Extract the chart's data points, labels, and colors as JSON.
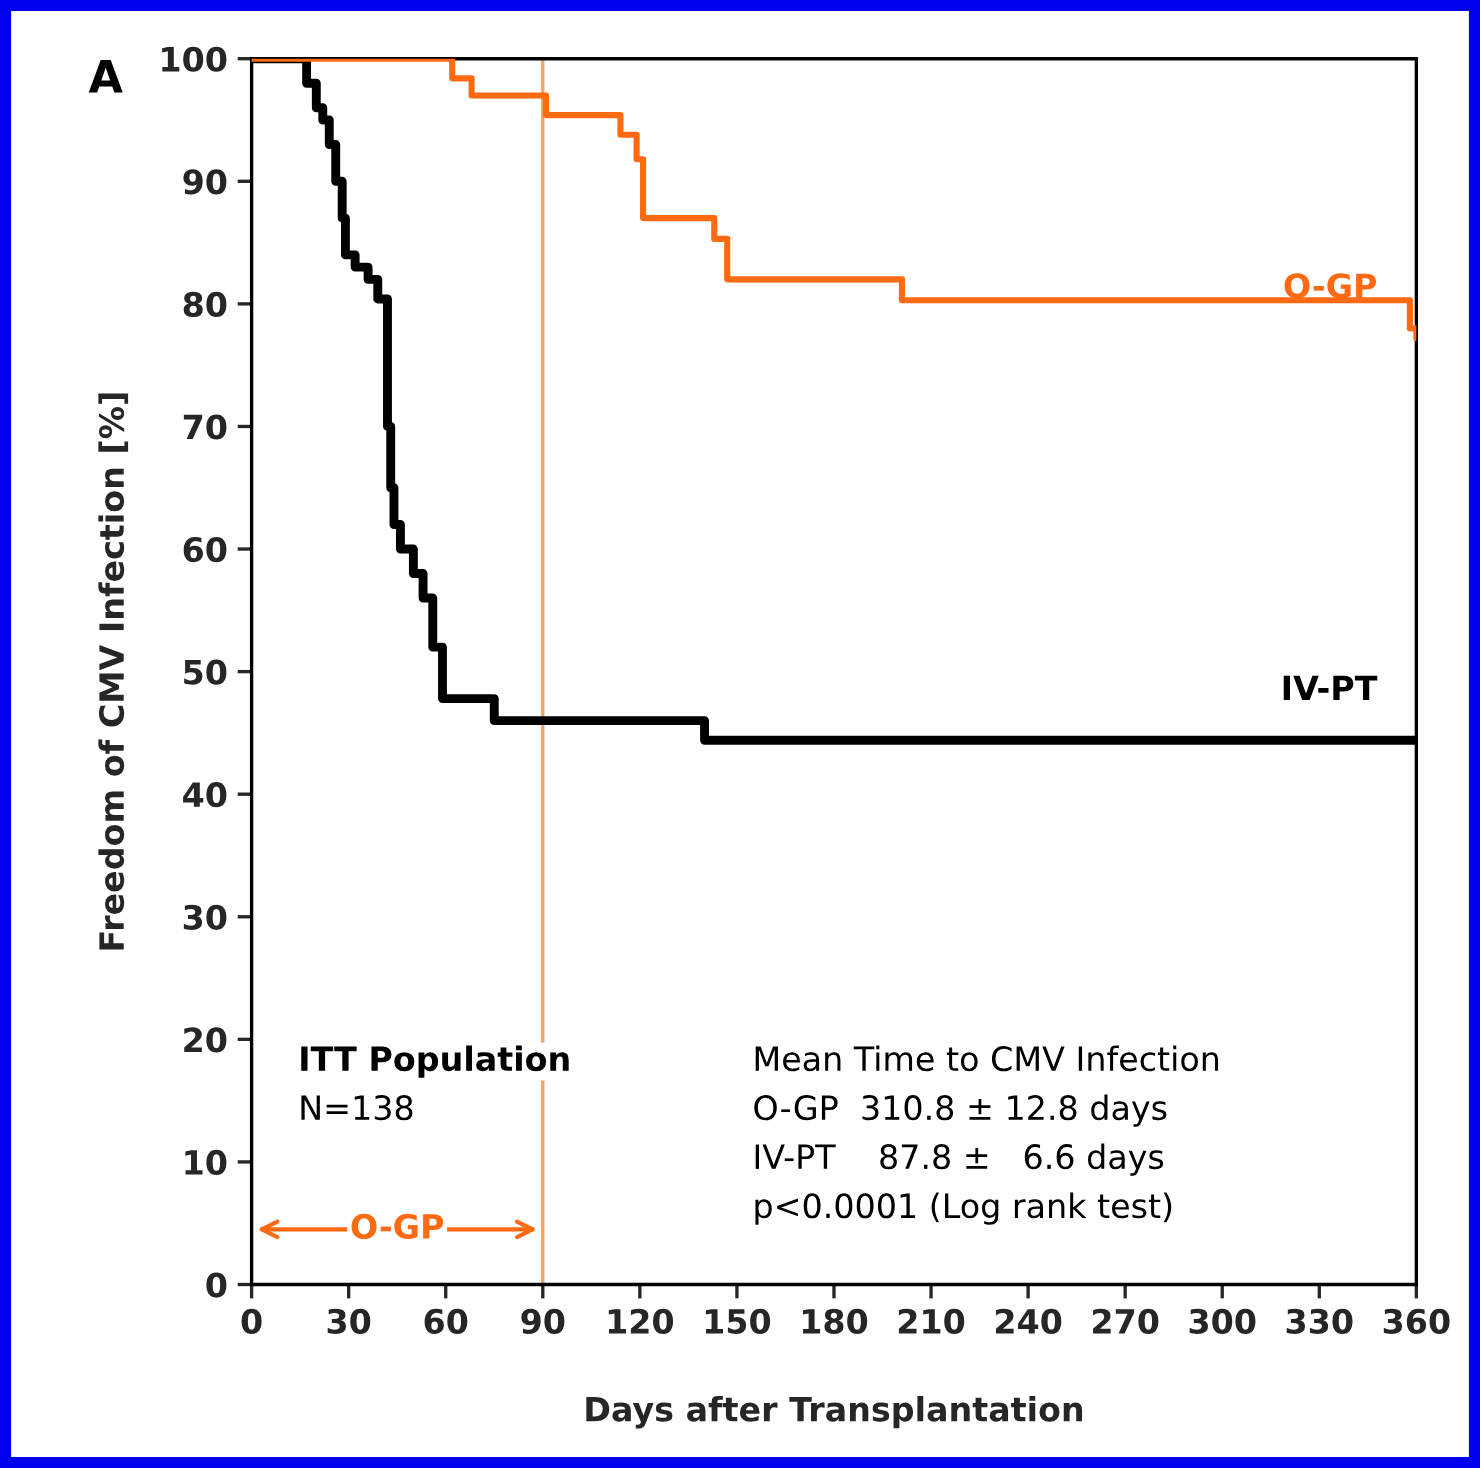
{
  "chart_data": {
    "type": "step",
    "xlabel": "Days after Transplantation",
    "ylabel": "Freedom of CMV Infection [%]",
    "xlim": [
      0,
      360
    ],
    "xticks": [
      0,
      30,
      60,
      90,
      120,
      150,
      180,
      210,
      240,
      270,
      300,
      330,
      360
    ],
    "ylim": [
      0,
      100
    ],
    "yticks": [
      0,
      10,
      20,
      30,
      40,
      50,
      60,
      70,
      80,
      90,
      100
    ],
    "grid": false,
    "legend": false,
    "series": [
      {
        "name": "O-GP",
        "color": "#ff6a13",
        "x": [
          0,
          62,
          68,
          91,
          114,
          119,
          121,
          143,
          147,
          201,
          358,
          360
        ],
        "values": [
          100,
          98.4,
          97,
          95.4,
          93.8,
          91.8,
          87,
          85.3,
          82,
          80.3,
          78,
          77.2
        ]
      },
      {
        "name": "IV-PT",
        "color": "#000000",
        "x": [
          0,
          17,
          20,
          22,
          24,
          26,
          28,
          29,
          32,
          36,
          39,
          42,
          43,
          44,
          46,
          50,
          53,
          56,
          59,
          75,
          140,
          360
        ],
        "values": [
          100,
          98,
          96,
          95,
          93,
          90,
          87,
          84,
          83,
          82,
          80.4,
          70,
          65,
          62,
          60,
          58,
          56,
          52,
          47.8,
          46,
          44.4,
          44.4
        ]
      }
    ],
    "ref_lines": [
      {
        "axis": "x",
        "value": 90,
        "color": "#f4a460"
      }
    ],
    "annotations": [
      "A",
      "ITT Population",
      "N=138",
      "Mean Time to CMV Infection",
      "O-GP  310.8 ± 12.8 days",
      "IV-PT    87.8 ±   6.6 days",
      "p<0.0001 (Log rank test)",
      "O-GP"
    ]
  }
}
